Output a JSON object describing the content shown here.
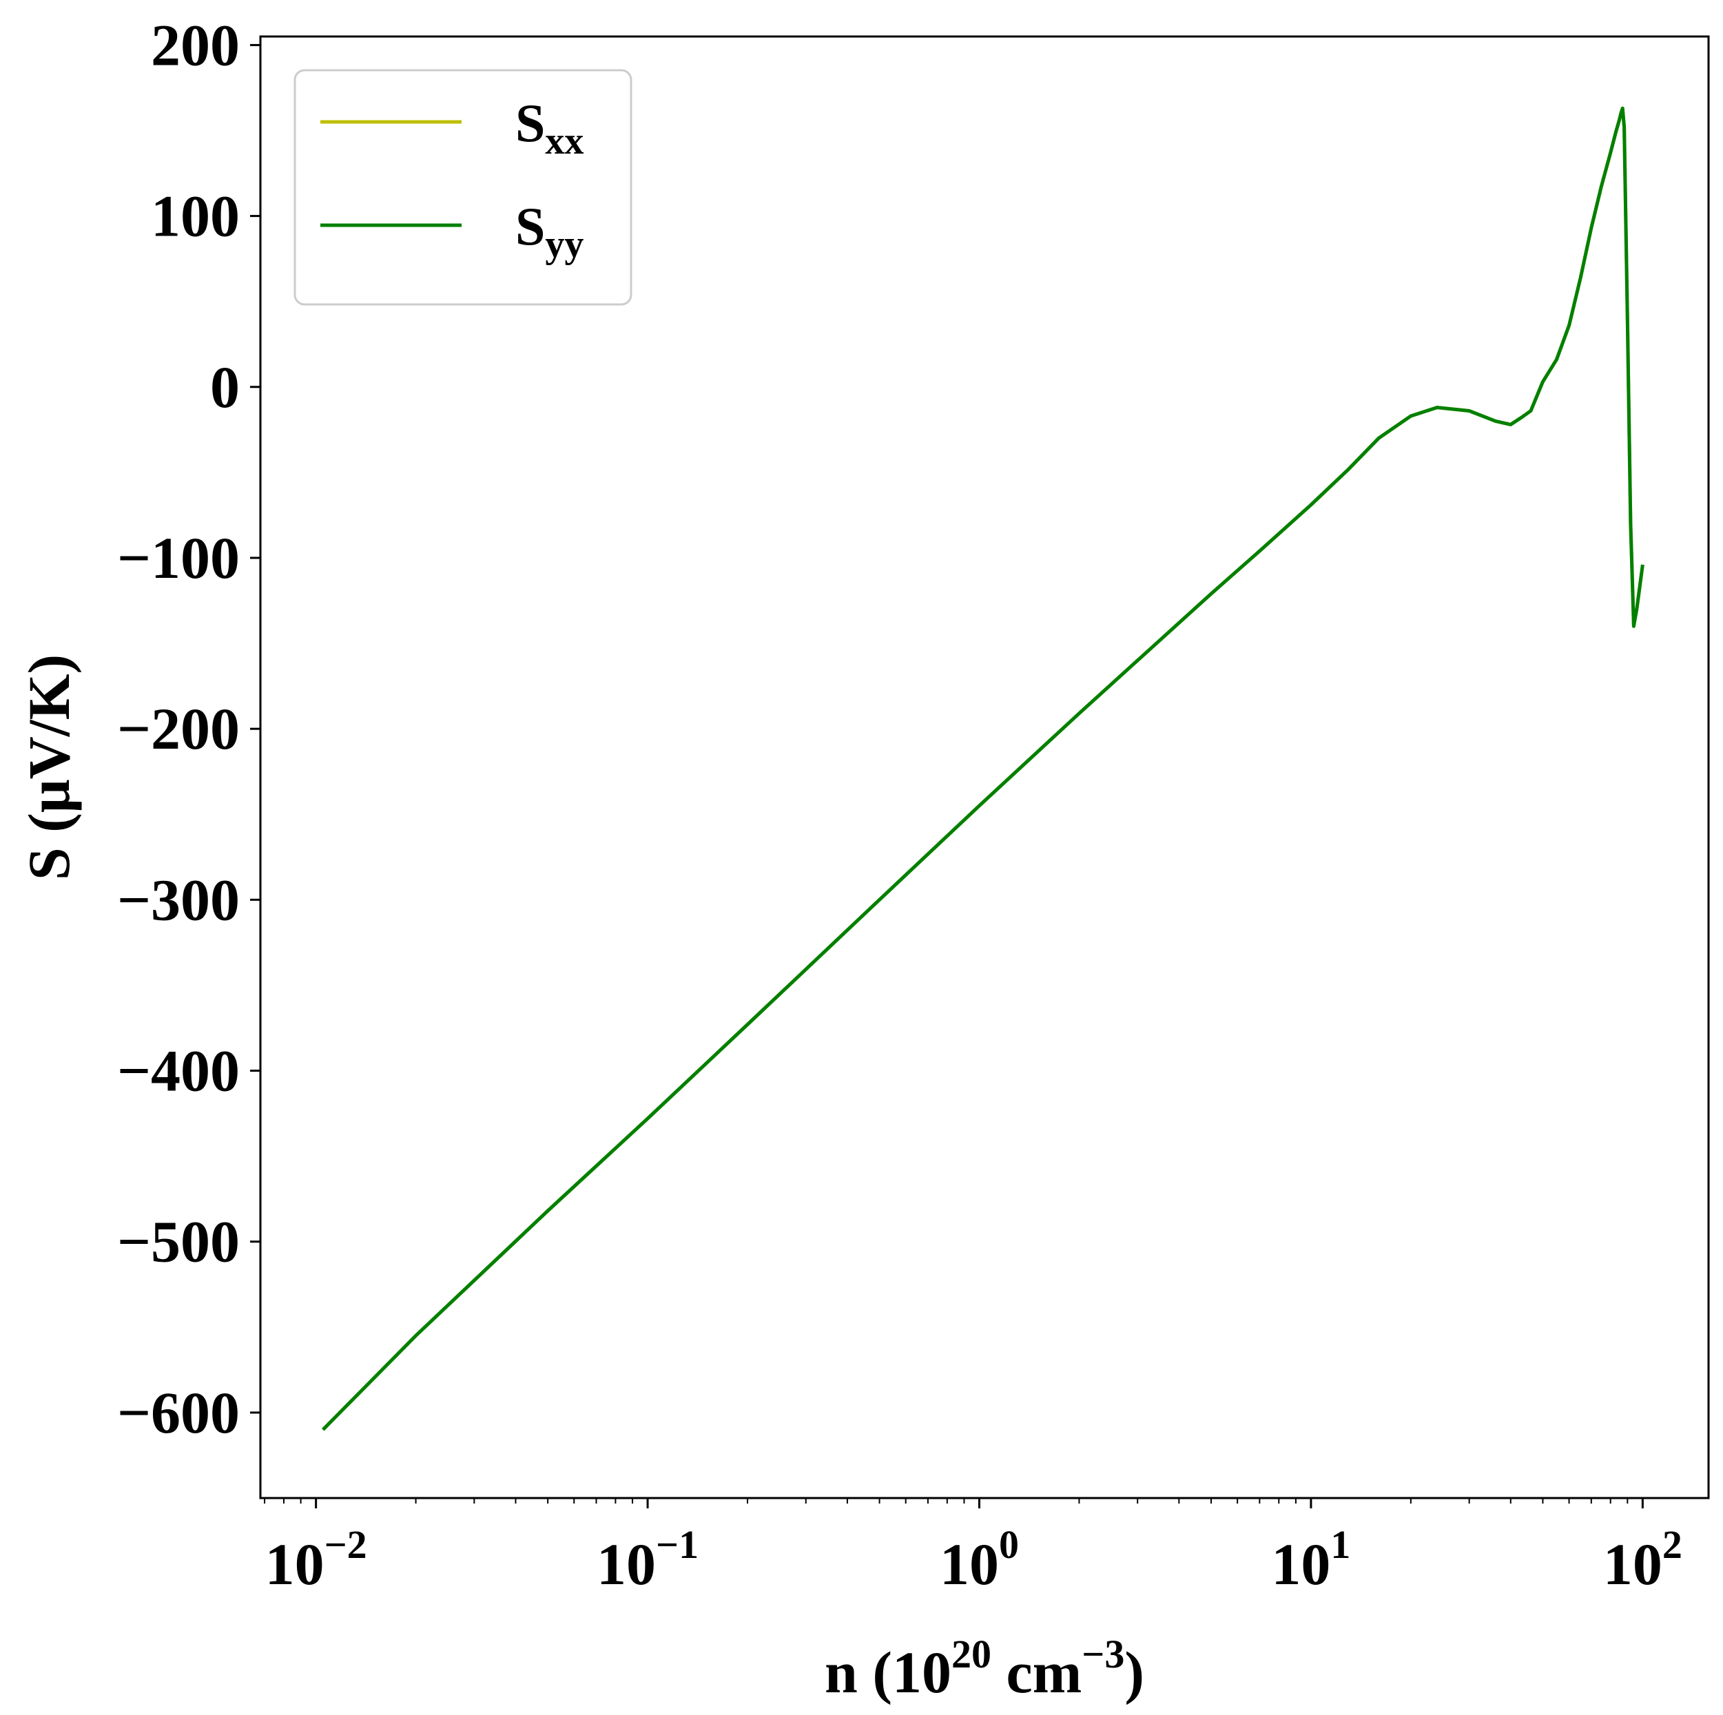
{
  "chart_data": {
    "type": "line",
    "xscale": "log",
    "xlabel": "n (10^20 cm^-3)",
    "xlabel_parts": {
      "pre": "n (10",
      "exp1": "20",
      "mid": " cm",
      "exp2": "−3",
      "post": ")"
    },
    "ylabel": "S (μV/K)",
    "xlim": [
      0.0068,
      158
    ],
    "ylim": [
      -650,
      205
    ],
    "x_ticks": [
      {
        "value": 0.01,
        "base": "10",
        "exp": "−2"
      },
      {
        "value": 0.1,
        "base": "10",
        "exp": "−1"
      },
      {
        "value": 1,
        "base": "10",
        "exp": "0"
      },
      {
        "value": 10,
        "base": "10",
        "exp": "1"
      },
      {
        "value": 100,
        "base": "10",
        "exp": "2"
      }
    ],
    "y_ticks": [
      {
        "value": 200,
        "label": "200"
      },
      {
        "value": 100,
        "label": "100"
      },
      {
        "value": 0,
        "label": "0"
      },
      {
        "value": -100,
        "label": "−100"
      },
      {
        "value": -200,
        "label": "−200"
      },
      {
        "value": -300,
        "label": "−300"
      },
      {
        "value": -400,
        "label": "−400"
      },
      {
        "value": -500,
        "label": "−500"
      },
      {
        "value": -600,
        "label": "−600"
      }
    ],
    "legend": {
      "placement": "top-left",
      "entries": [
        {
          "base": "S",
          "sub": "xx",
          "color": "#bfbf00"
        },
        {
          "base": "S",
          "sub": "yy",
          "color": "#008000"
        }
      ]
    },
    "series": [
      {
        "name": "Sxx",
        "color": "#bfbf00",
        "x": [
          0.0105,
          0.02,
          0.05,
          0.1,
          0.2,
          0.5,
          1,
          2,
          3,
          5,
          7,
          10,
          13,
          16,
          20,
          24,
          30,
          36,
          40,
          43,
          46,
          50,
          55,
          60,
          65,
          70,
          75,
          80,
          83,
          85,
          86,
          87,
          88,
          90,
          92,
          94,
          96,
          98,
          100
        ],
        "y": [
          -610,
          -555,
          -482,
          -428,
          -373,
          -300,
          -245,
          -191,
          -160,
          -121,
          -96,
          -69,
          -48,
          -30,
          -17,
          -12,
          -14,
          -20,
          -22,
          -18,
          -14,
          3,
          16,
          36,
          64,
          93,
          117,
          137,
          149,
          156,
          160,
          163,
          152,
          40,
          -80,
          -140,
          -130,
          -117,
          -104
        ]
      },
      {
        "name": "Syy",
        "color": "#008000",
        "x": [
          0.0105,
          0.02,
          0.05,
          0.1,
          0.2,
          0.5,
          1,
          2,
          3,
          5,
          7,
          10,
          13,
          16,
          20,
          24,
          30,
          36,
          40,
          43,
          46,
          50,
          55,
          60,
          65,
          70,
          75,
          80,
          83,
          85,
          86,
          87,
          88,
          90,
          92,
          94,
          96,
          98,
          100
        ],
        "y": [
          -610,
          -555,
          -482,
          -428,
          -373,
          -300,
          -245,
          -191,
          -160,
          -121,
          -96,
          -69,
          -48,
          -30,
          -17,
          -12,
          -14,
          -20,
          -22,
          -18,
          -14,
          3,
          16,
          36,
          64,
          93,
          117,
          137,
          149,
          156,
          160,
          163,
          152,
          40,
          -80,
          -140,
          -130,
          -117,
          -104
        ]
      }
    ]
  }
}
